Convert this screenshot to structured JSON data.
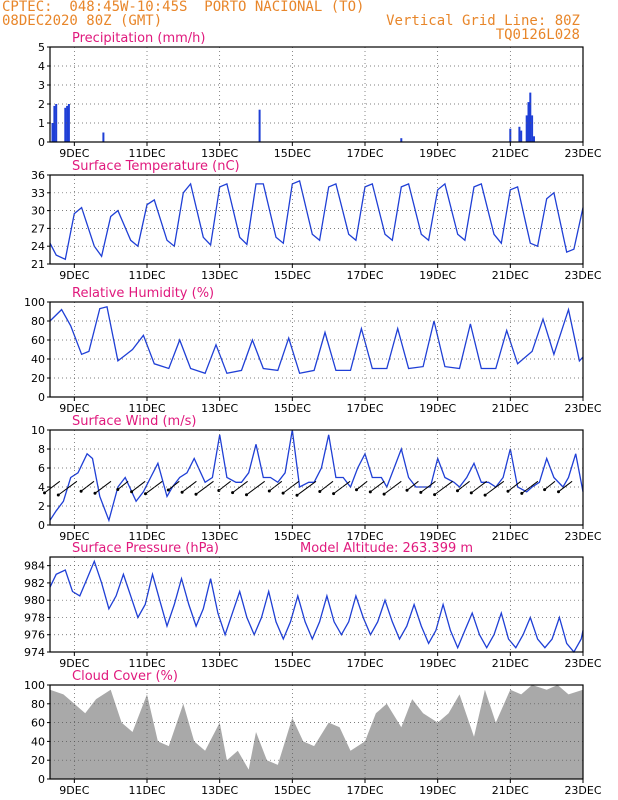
{
  "header": {
    "left_line1": "CPTEC:  048:45W-10:45S  PORTO NACIONAL (TO)",
    "left_line2": "08DEC2020 80Z (GMT)",
    "right_line1": "Vertical Grid Line: 80Z",
    "right_line2": "TQ0126L028"
  },
  "colors": {
    "header": "#e8862a",
    "title": "#e0197d",
    "line": "#1f3fd6",
    "cloud": "#a9a9a9",
    "wind_arrow": "#000000"
  },
  "x_axis": {
    "day_start": 8.33,
    "day_end": 23.0,
    "ticks": [
      {
        "day": 9,
        "label": "9DEC"
      },
      {
        "day": 11,
        "label": "11DEC"
      },
      {
        "day": 13,
        "label": "13DEC"
      },
      {
        "day": 15,
        "label": "15DEC"
      },
      {
        "day": 17,
        "label": "17DEC"
      },
      {
        "day": 19,
        "label": "19DEC"
      },
      {
        "day": 21,
        "label": "21DEC"
      },
      {
        "day": 23,
        "label": "23DEC"
      }
    ]
  },
  "chart_data": [
    {
      "type": "bar",
      "title": "Precipitation (mm/h)",
      "ylim": [
        0,
        5
      ],
      "yticks": [
        0,
        1,
        2,
        3,
        4,
        5
      ],
      "x": [
        8.4,
        8.45,
        8.5,
        8.75,
        8.8,
        8.85,
        9.8,
        14.1,
        18.0,
        21.0,
        21.25,
        21.3,
        21.45,
        21.5,
        21.55,
        21.6,
        21.65
      ],
      "values": [
        1.0,
        1.9,
        2.0,
        1.8,
        1.9,
        2.0,
        0.5,
        1.7,
        0.2,
        0.7,
        0.8,
        0.6,
        1.4,
        2.1,
        2.6,
        1.4,
        0.3
      ]
    },
    {
      "type": "line",
      "title": "Surface Temperature (nC)",
      "ylim": [
        21,
        36
      ],
      "yticks": [
        21,
        24,
        27,
        30,
        33,
        36
      ],
      "x": [
        8.33,
        8.5,
        8.75,
        9.0,
        9.2,
        9.55,
        9.75,
        10.0,
        10.2,
        10.55,
        10.75,
        11.0,
        11.2,
        11.55,
        11.75,
        12.0,
        12.2,
        12.55,
        12.75,
        13.0,
        13.2,
        13.55,
        13.75,
        14.0,
        14.2,
        14.55,
        14.75,
        15.0,
        15.2,
        15.55,
        15.75,
        16.0,
        16.2,
        16.55,
        16.75,
        17.0,
        17.2,
        17.55,
        17.75,
        18.0,
        18.2,
        18.55,
        18.75,
        19.0,
        19.2,
        19.55,
        19.75,
        20.0,
        20.2,
        20.55,
        20.75,
        21.0,
        21.2,
        21.55,
        21.75,
        22.0,
        22.2,
        22.55,
        22.75,
        23.0
      ],
      "values": [
        24.5,
        22.5,
        21.8,
        29.5,
        30.5,
        24.0,
        22.3,
        29.0,
        30.0,
        25.0,
        24.0,
        31.0,
        31.8,
        25.0,
        24.0,
        33.0,
        34.5,
        25.5,
        24.2,
        34.0,
        34.5,
        25.5,
        24.3,
        34.5,
        34.5,
        25.5,
        24.5,
        34.5,
        35.0,
        26.0,
        25.0,
        34.0,
        34.5,
        26.0,
        25.0,
        34.0,
        34.5,
        26.0,
        25.0,
        34.0,
        34.5,
        26.0,
        25.0,
        33.5,
        34.5,
        26.0,
        25.0,
        34.0,
        34.5,
        26.0,
        24.5,
        33.5,
        34.0,
        24.5,
        24.0,
        32.0,
        33.0,
        23.0,
        23.5,
        30.5
      ]
    },
    {
      "type": "line",
      "title": "Relative Humidity (%)",
      "ylim": [
        0,
        100
      ],
      "yticks": [
        0,
        20,
        40,
        60,
        80,
        100
      ],
      "x": [
        8.33,
        8.65,
        8.9,
        9.2,
        9.4,
        9.7,
        9.9,
        10.2,
        10.6,
        10.9,
        11.2,
        11.6,
        11.9,
        12.2,
        12.6,
        12.9,
        13.2,
        13.6,
        13.9,
        14.2,
        14.6,
        14.9,
        15.2,
        15.6,
        15.9,
        16.2,
        16.6,
        16.9,
        17.2,
        17.6,
        17.9,
        18.2,
        18.6,
        18.9,
        19.2,
        19.6,
        19.9,
        20.2,
        20.6,
        20.9,
        21.2,
        21.6,
        21.9,
        22.2,
        22.6,
        22.9,
        23.0
      ],
      "values": [
        80,
        92,
        75,
        45,
        48,
        93,
        95,
        38,
        50,
        65,
        35,
        30,
        60,
        30,
        25,
        55,
        25,
        28,
        60,
        30,
        28,
        62,
        25,
        28,
        68,
        28,
        28,
        72,
        30,
        30,
        72,
        30,
        32,
        80,
        32,
        30,
        77,
        30,
        30,
        70,
        35,
        48,
        82,
        45,
        92,
        38,
        42
      ]
    },
    {
      "type": "line",
      "title": "Surface Wind (m/s)",
      "ylim": [
        0,
        10
      ],
      "yticks": [
        0,
        2,
        4,
        6,
        8,
        10
      ],
      "x": [
        8.33,
        8.5,
        8.7,
        8.9,
        9.1,
        9.35,
        9.5,
        9.7,
        9.95,
        10.2,
        10.4,
        10.7,
        10.9,
        11.1,
        11.3,
        11.55,
        11.7,
        11.9,
        12.1,
        12.3,
        12.6,
        12.8,
        13.0,
        13.2,
        13.45,
        13.6,
        13.8,
        14.0,
        14.2,
        14.4,
        14.6,
        14.8,
        15.0,
        15.2,
        15.45,
        15.6,
        15.8,
        16.0,
        16.2,
        16.4,
        16.6,
        16.8,
        17.0,
        17.2,
        17.45,
        17.6,
        17.8,
        18.0,
        18.2,
        18.4,
        18.6,
        18.8,
        19.0,
        19.2,
        19.45,
        19.6,
        19.8,
        20.0,
        20.2,
        20.4,
        20.6,
        20.8,
        21.0,
        21.2,
        21.45,
        21.6,
        21.8,
        22.0,
        22.2,
        22.45,
        22.6,
        22.8,
        23.0
      ],
      "values": [
        0.5,
        1.5,
        2.5,
        5.0,
        5.5,
        7.5,
        7.0,
        3.0,
        0.5,
        4.0,
        5.0,
        2.5,
        3.5,
        5.0,
        6.5,
        3.0,
        4.0,
        5.0,
        5.5,
        7.0,
        4.5,
        5.0,
        9.5,
        5.0,
        4.5,
        4.5,
        5.5,
        8.5,
        5.0,
        5.0,
        4.5,
        5.5,
        10.0,
        4.0,
        4.5,
        4.5,
        6.0,
        9.5,
        5.0,
        5.0,
        4.0,
        6.0,
        7.5,
        5.0,
        5.0,
        4.0,
        6.0,
        8.0,
        5.0,
        4.0,
        4.0,
        4.0,
        7.0,
        5.0,
        4.5,
        4.0,
        5.0,
        6.5,
        4.5,
        4.5,
        4.0,
        5.0,
        8.0,
        4.0,
        3.5,
        4.0,
        4.5,
        7.0,
        5.0,
        4.0,
        5.0,
        7.5,
        3.5
      ]
    },
    {
      "type": "line",
      "title": "Surface Pressure (hPa)",
      "annotation": "Model Altitude: 263.399 m",
      "ylim": [
        974,
        985
      ],
      "yticks": [
        974,
        976,
        978,
        980,
        982,
        984
      ],
      "x": [
        8.33,
        8.5,
        8.75,
        8.95,
        9.15,
        9.35,
        9.55,
        9.75,
        9.95,
        10.15,
        10.35,
        10.55,
        10.75,
        10.95,
        11.15,
        11.35,
        11.55,
        11.75,
        11.95,
        12.15,
        12.35,
        12.55,
        12.75,
        12.95,
        13.15,
        13.35,
        13.55,
        13.75,
        13.95,
        14.15,
        14.35,
        14.55,
        14.75,
        14.95,
        15.15,
        15.35,
        15.55,
        15.75,
        15.95,
        16.15,
        16.35,
        16.55,
        16.75,
        16.95,
        17.15,
        17.35,
        17.55,
        17.75,
        17.95,
        18.15,
        18.35,
        18.55,
        18.75,
        18.95,
        19.15,
        19.35,
        19.55,
        19.75,
        19.95,
        20.15,
        20.35,
        20.55,
        20.75,
        20.95,
        21.15,
        21.35,
        21.55,
        21.75,
        21.95,
        22.15,
        22.35,
        22.55,
        22.75,
        22.95,
        23.0
      ],
      "values": [
        981.5,
        983.0,
        983.5,
        981.0,
        980.5,
        982.5,
        984.5,
        982.0,
        979.0,
        980.5,
        983.0,
        980.5,
        978.0,
        979.5,
        983.0,
        980.0,
        977.0,
        979.5,
        982.5,
        979.5,
        977.0,
        979.0,
        982.5,
        978.5,
        976.0,
        978.5,
        981.0,
        978.0,
        976.0,
        978.0,
        981.0,
        977.5,
        975.5,
        977.5,
        980.5,
        977.5,
        975.5,
        977.5,
        980.5,
        977.5,
        976.0,
        977.5,
        980.5,
        978.0,
        976.0,
        977.5,
        980.0,
        977.5,
        975.5,
        977.0,
        979.5,
        977.0,
        975.0,
        976.5,
        979.5,
        976.5,
        974.5,
        976.5,
        978.5,
        976.0,
        974.5,
        976.0,
        978.5,
        975.5,
        974.5,
        976.0,
        978.0,
        975.5,
        974.5,
        975.5,
        978.0,
        975.0,
        974.0,
        975.5,
        976.5
      ]
    },
    {
      "type": "area",
      "title": "Cloud Cover (%)",
      "ylim": [
        0,
        100
      ],
      "yticks": [
        0,
        20,
        40,
        60,
        80,
        100
      ],
      "x": [
        8.33,
        8.7,
        9.0,
        9.3,
        9.6,
        10.0,
        10.3,
        10.6,
        11.0,
        11.3,
        11.6,
        12.0,
        12.3,
        12.6,
        13.0,
        13.2,
        13.5,
        13.8,
        14.0,
        14.3,
        14.6,
        15.0,
        15.3,
        15.6,
        16.0,
        16.3,
        16.6,
        17.0,
        17.3,
        17.6,
        18.0,
        18.3,
        18.6,
        19.0,
        19.3,
        19.6,
        20.0,
        20.3,
        20.6,
        21.0,
        21.3,
        21.6,
        22.0,
        22.3,
        22.6,
        23.0
      ],
      "values": [
        95,
        90,
        80,
        70,
        85,
        95,
        60,
        50,
        90,
        40,
        35,
        80,
        40,
        30,
        60,
        20,
        30,
        10,
        50,
        20,
        15,
        65,
        40,
        35,
        60,
        55,
        30,
        40,
        70,
        80,
        55,
        85,
        70,
        60,
        70,
        90,
        45,
        95,
        60,
        95,
        90,
        100,
        95,
        100,
        90,
        95
      ]
    }
  ]
}
